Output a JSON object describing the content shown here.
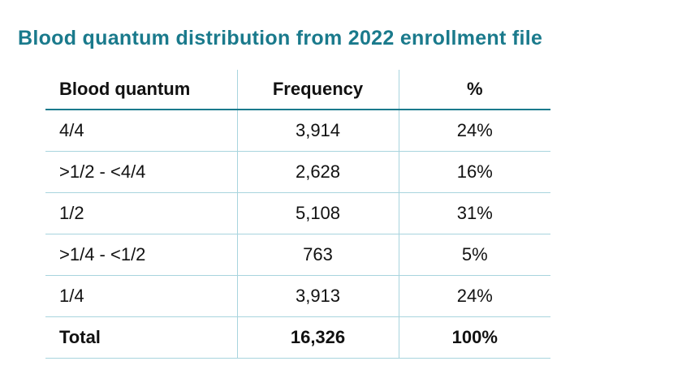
{
  "title": "Blood quantum distribution  from 2022 enrollment file",
  "table": {
    "headers": [
      "Blood quantum",
      "Frequency",
      "%"
    ],
    "rows": [
      [
        "4/4",
        "3,914",
        "24%"
      ],
      [
        ">1/2 - <4/4",
        "2,628",
        "16%"
      ],
      [
        "1/2",
        "5,108",
        "31%"
      ],
      [
        ">1/4 - <1/2",
        "763",
        "5%"
      ],
      [
        "1/4",
        "3,913",
        "24%"
      ]
    ],
    "total": [
      "Total",
      "16,326",
      "100%"
    ]
  },
  "colors": {
    "title": "#1a7a8c",
    "header_rule": "#1a7a8c",
    "grid": "#a8d4de"
  }
}
